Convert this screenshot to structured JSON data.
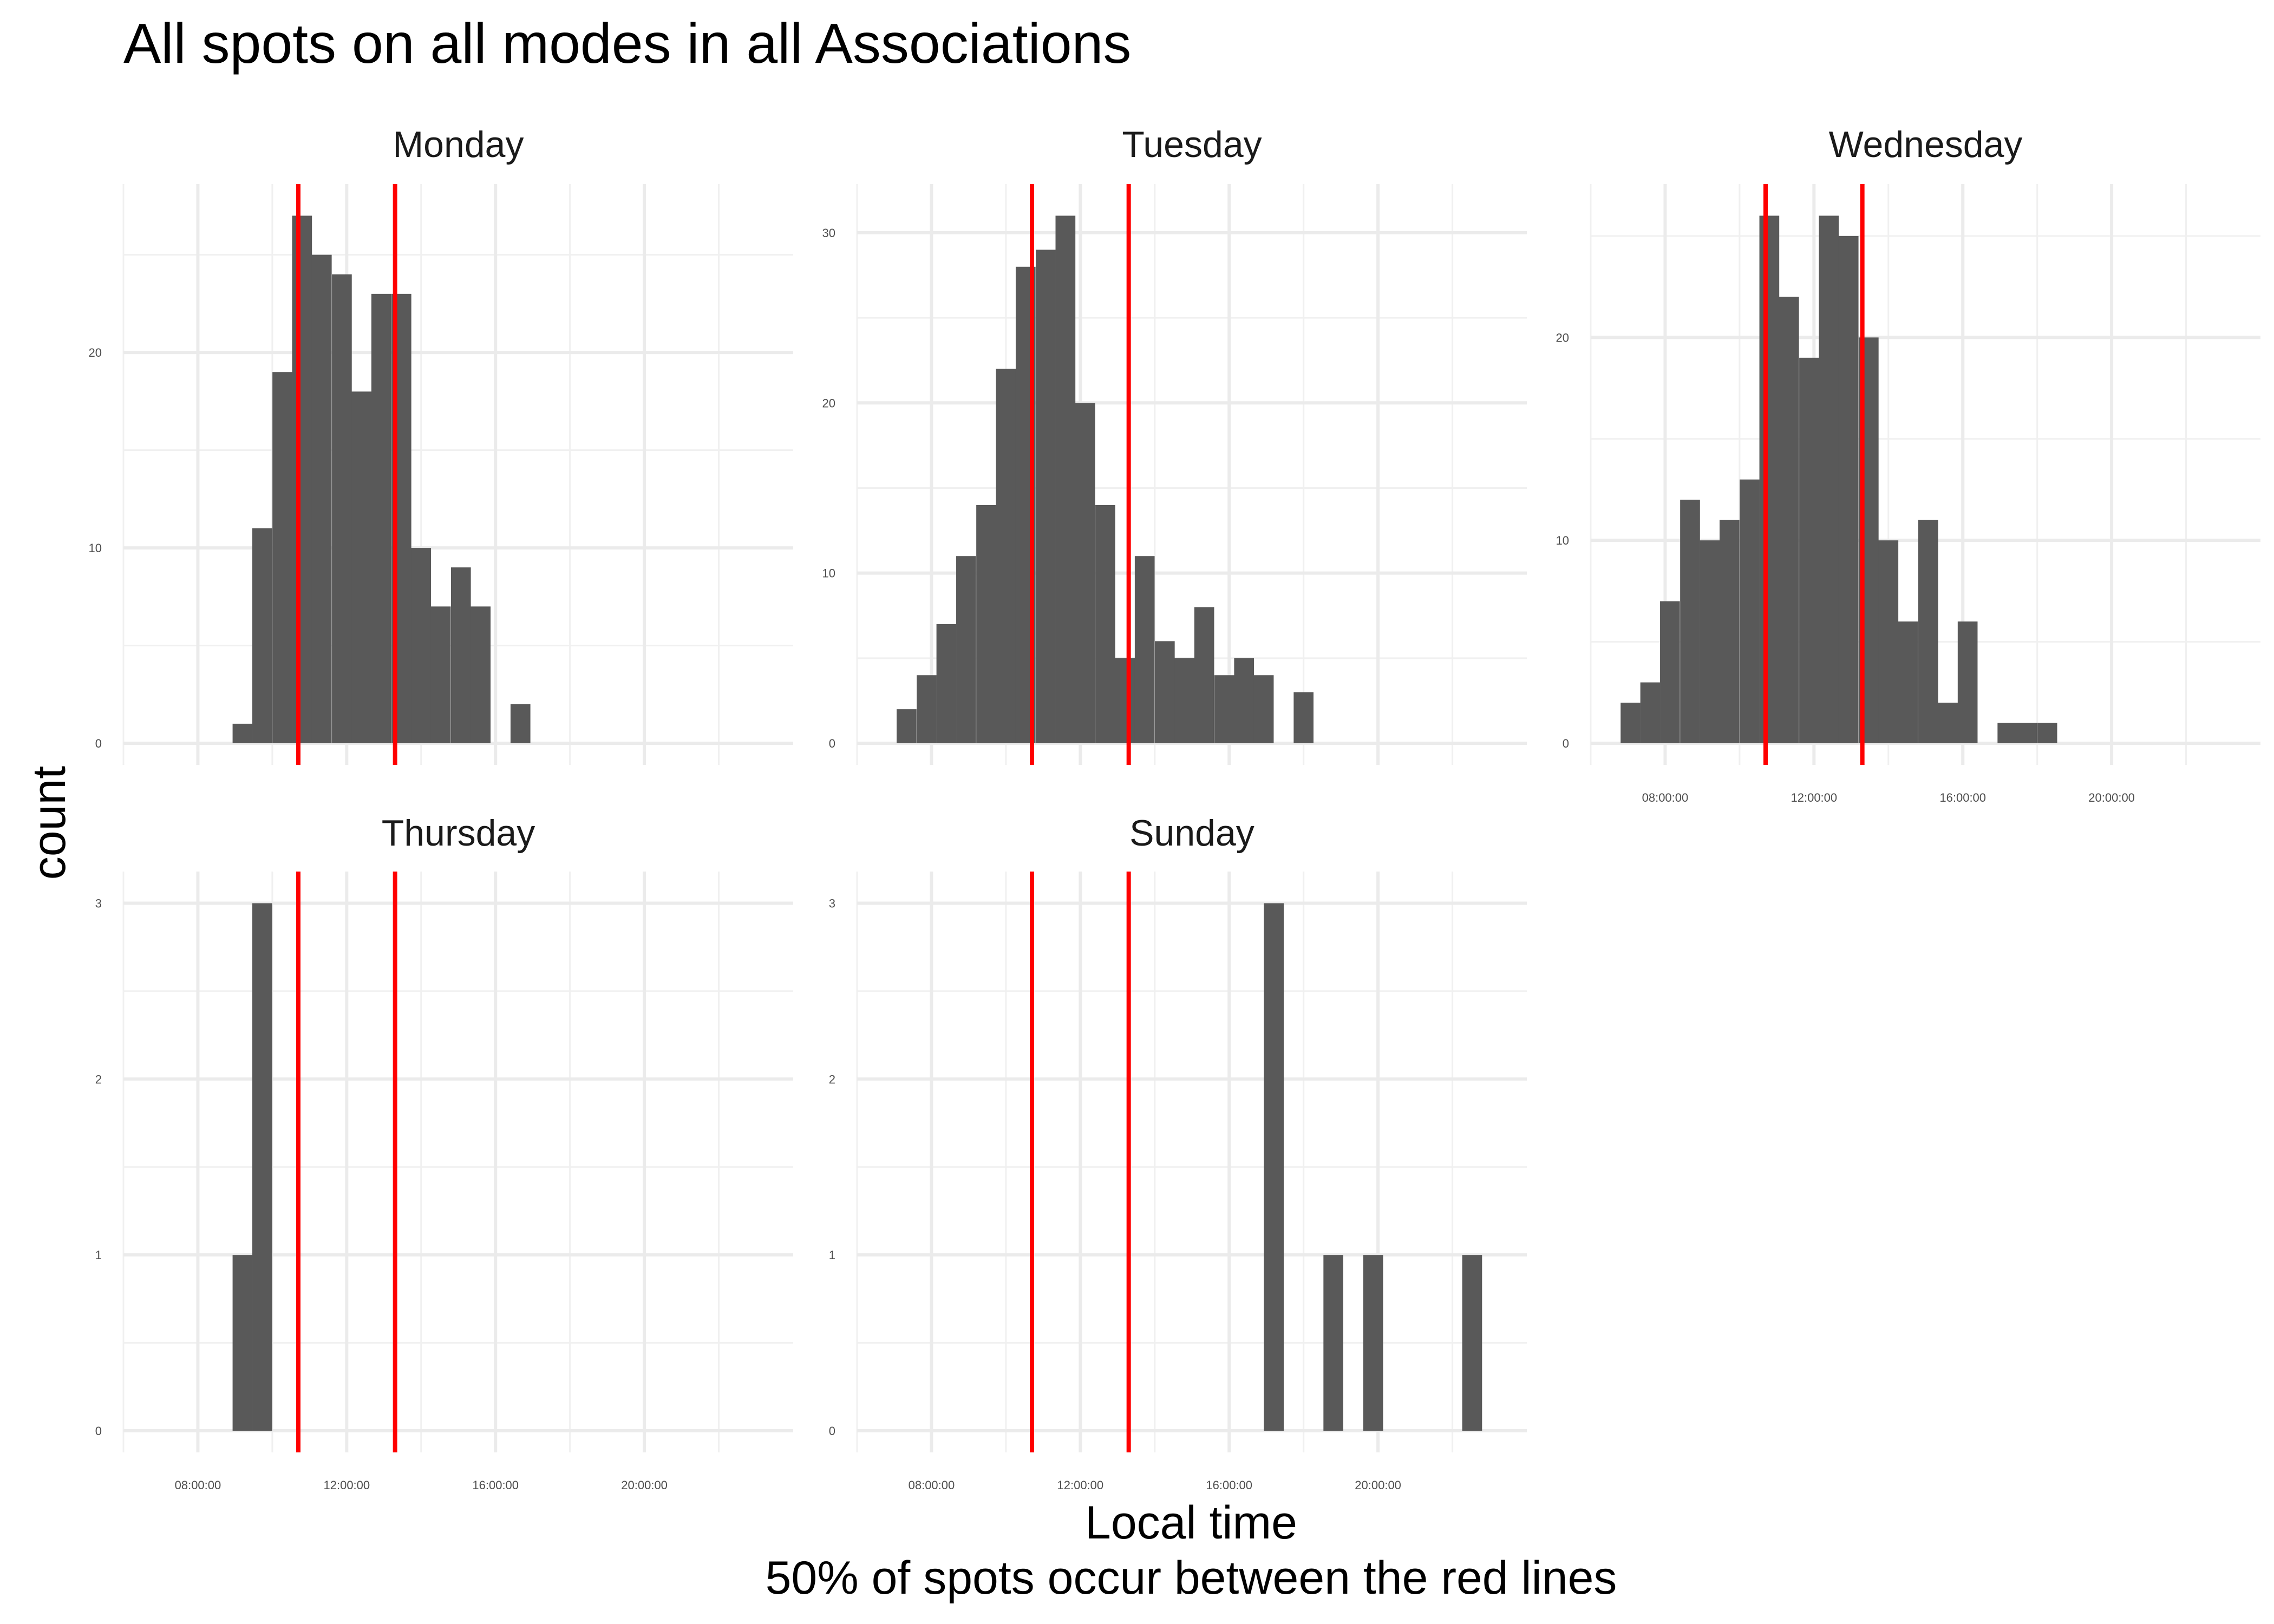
{
  "chart_data": {
    "type": "bar",
    "title": "All spots on all modes in all Associations",
    "xlabel": "Local time",
    "caption": "50% of spots occur between the red lines",
    "ylabel": "count",
    "x_breaks_hours": [
      8,
      12,
      16,
      20
    ],
    "x_tick_labels": [
      "08:00:00",
      "12:00:00",
      "16:00:00",
      "20:00:00"
    ],
    "xlim_hours": [
      6,
      24
    ],
    "bin_width_hours": 0.5333,
    "red_lines_hours": [
      10.7,
      13.3
    ],
    "grid": true,
    "red_line_color": "#ff0000",
    "bar_color": "#595959",
    "panels": [
      {
        "name": "Monday",
        "ylim": [
          0,
          27
        ],
        "y_breaks": [
          0,
          10,
          20
        ],
        "y_tick_labels": [
          "0",
          "10",
          "20"
        ],
        "bins": [
          {
            "x": 9.2,
            "count": 1
          },
          {
            "x": 9.73,
            "count": 11
          },
          {
            "x": 10.27,
            "count": 19
          },
          {
            "x": 10.8,
            "count": 27
          },
          {
            "x": 11.33,
            "count": 25
          },
          {
            "x": 11.87,
            "count": 24
          },
          {
            "x": 12.4,
            "count": 18
          },
          {
            "x": 12.93,
            "count": 23
          },
          {
            "x": 13.47,
            "count": 23
          },
          {
            "x": 14.0,
            "count": 10
          },
          {
            "x": 14.53,
            "count": 7
          },
          {
            "x": 15.07,
            "count": 9
          },
          {
            "x": 15.6,
            "count": 7
          },
          {
            "x": 16.67,
            "count": 2
          }
        ]
      },
      {
        "name": "Tuesday",
        "ylim": [
          0,
          31
        ],
        "y_breaks": [
          0,
          10,
          20,
          30
        ],
        "y_tick_labels": [
          "0",
          "10",
          "20",
          "30"
        ],
        "bins": [
          {
            "x": 7.33,
            "count": 2
          },
          {
            "x": 7.87,
            "count": 4
          },
          {
            "x": 8.4,
            "count": 7
          },
          {
            "x": 8.93,
            "count": 11
          },
          {
            "x": 9.47,
            "count": 14
          },
          {
            "x": 10.0,
            "count": 22
          },
          {
            "x": 10.53,
            "count": 28
          },
          {
            "x": 11.07,
            "count": 29
          },
          {
            "x": 11.6,
            "count": 31
          },
          {
            "x": 12.13,
            "count": 20
          },
          {
            "x": 12.67,
            "count": 14
          },
          {
            "x": 13.2,
            "count": 5
          },
          {
            "x": 13.73,
            "count": 11
          },
          {
            "x": 14.27,
            "count": 6
          },
          {
            "x": 14.8,
            "count": 5
          },
          {
            "x": 15.33,
            "count": 8
          },
          {
            "x": 15.87,
            "count": 4
          },
          {
            "x": 16.4,
            "count": 5
          },
          {
            "x": 16.93,
            "count": 4
          },
          {
            "x": 18.0,
            "count": 3
          }
        ]
      },
      {
        "name": "Wednesday",
        "ylim": [
          0,
          26
        ],
        "y_breaks": [
          0,
          10,
          20
        ],
        "y_tick_labels": [
          "0",
          "10",
          "20"
        ],
        "bins": [
          {
            "x": 7.07,
            "count": 2
          },
          {
            "x": 7.6,
            "count": 3
          },
          {
            "x": 8.13,
            "count": 7
          },
          {
            "x": 8.67,
            "count": 12
          },
          {
            "x": 9.2,
            "count": 10
          },
          {
            "x": 9.73,
            "count": 11
          },
          {
            "x": 10.27,
            "count": 13
          },
          {
            "x": 10.8,
            "count": 26
          },
          {
            "x": 11.33,
            "count": 22
          },
          {
            "x": 11.87,
            "count": 19
          },
          {
            "x": 12.4,
            "count": 26
          },
          {
            "x": 12.93,
            "count": 25
          },
          {
            "x": 13.47,
            "count": 20
          },
          {
            "x": 14.0,
            "count": 10
          },
          {
            "x": 14.53,
            "count": 6
          },
          {
            "x": 15.07,
            "count": 11
          },
          {
            "x": 15.6,
            "count": 2
          },
          {
            "x": 16.13,
            "count": 6
          },
          {
            "x": 17.2,
            "count": 1
          },
          {
            "x": 17.73,
            "count": 1
          },
          {
            "x": 18.27,
            "count": 1
          }
        ]
      },
      {
        "name": "Thursday",
        "ylim": [
          0,
          3
        ],
        "y_breaks": [
          0,
          1,
          2,
          3
        ],
        "y_tick_labels": [
          "0",
          "1",
          "2",
          "3"
        ],
        "bins": [
          {
            "x": 9.2,
            "count": 1
          },
          {
            "x": 9.73,
            "count": 3
          }
        ]
      },
      {
        "name": "Sunday",
        "ylim": [
          0,
          3
        ],
        "y_breaks": [
          0,
          1,
          2,
          3
        ],
        "y_tick_labels": [
          "0",
          "1",
          "2",
          "3"
        ],
        "bins": [
          {
            "x": 17.2,
            "count": 3
          },
          {
            "x": 18.8,
            "count": 1
          },
          {
            "x": 19.87,
            "count": 1
          },
          {
            "x": 22.53,
            "count": 1
          }
        ]
      }
    ]
  }
}
